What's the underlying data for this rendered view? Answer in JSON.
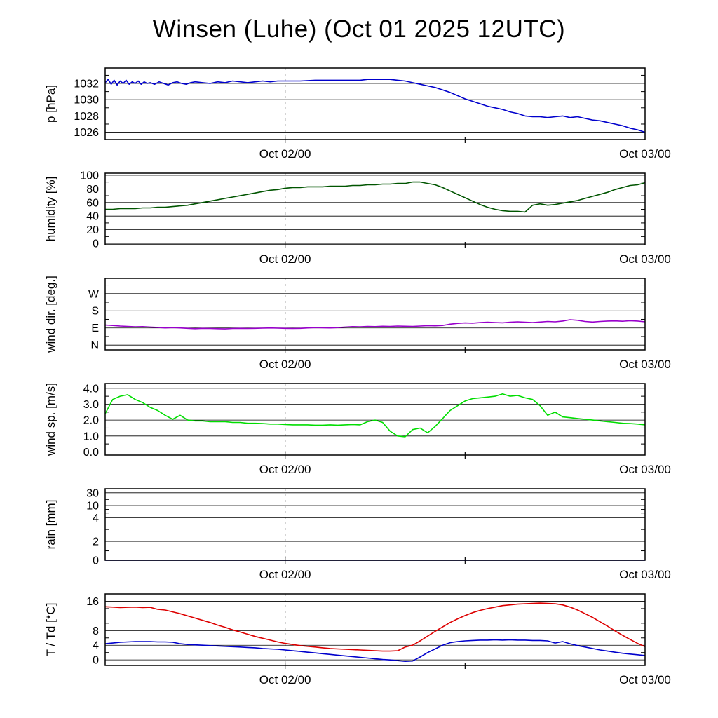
{
  "title": "Winsen (Luhe) (Oct 01 2025 12UTC)",
  "x_axis": {
    "start_hour": 0,
    "end_hour": 36,
    "dashed_line_hour": 12,
    "bottom_tick_hours": [
      12,
      24
    ],
    "labels": [
      {
        "hour": 12,
        "text": "Oct 02/00"
      },
      {
        "hour": 36,
        "text": "Oct 03/00"
      }
    ]
  },
  "chart_data": [
    {
      "type": "line",
      "ylabel": "p [hPa]",
      "ylim": [
        1025.1,
        1033.9
      ],
      "yticks": [
        {
          "v": 1026,
          "label": "1026"
        },
        {
          "v": 1028,
          "label": "1028"
        },
        {
          "v": 1030,
          "label": "1030"
        },
        {
          "v": 1032,
          "label": "1032"
        }
      ],
      "yminor": [
        1027,
        1029,
        1031,
        1033
      ],
      "series": [
        {
          "name": "pressure",
          "color": "#0000cc",
          "x": [
            0,
            0.2,
            0.4,
            0.6,
            0.8,
            1,
            1.2,
            1.4,
            1.6,
            1.8,
            2,
            2.2,
            2.4,
            2.6,
            2.8,
            3,
            3.3,
            3.6,
            3.9,
            4.2,
            4.5,
            4.8,
            5.1,
            5.4,
            5.7,
            6,
            6.5,
            7,
            7.5,
            8,
            8.5,
            9,
            9.5,
            10,
            10.5,
            11,
            11.5,
            12,
            13,
            14,
            15,
            16,
            17,
            17.5,
            18,
            18.5,
            19,
            19.5,
            20,
            20.5,
            21,
            21.5,
            22,
            22.5,
            23,
            23.5,
            24,
            24.5,
            25,
            25.5,
            26,
            26.5,
            27,
            27.5,
            28,
            28.5,
            29,
            29.5,
            30,
            30.5,
            31,
            31.5,
            32,
            32.5,
            33,
            33.5,
            34,
            34.5,
            35,
            35.5,
            36
          ],
          "y": [
            1032.1,
            1032.5,
            1031.9,
            1032.4,
            1031.8,
            1032.3,
            1032.0,
            1032.4,
            1031.9,
            1032.2,
            1032.0,
            1032.3,
            1031.9,
            1032.2,
            1032.0,
            1032.1,
            1031.9,
            1032.2,
            1032.0,
            1031.8,
            1032.1,
            1032.2,
            1032.0,
            1031.9,
            1032.1,
            1032.2,
            1032.1,
            1032.0,
            1032.2,
            1032.1,
            1032.3,
            1032.2,
            1032.1,
            1032.2,
            1032.3,
            1032.2,
            1032.3,
            1032.3,
            1032.3,
            1032.4,
            1032.4,
            1032.4,
            1032.4,
            1032.5,
            1032.5,
            1032.5,
            1032.5,
            1032.4,
            1032.3,
            1032.1,
            1031.9,
            1031.7,
            1031.5,
            1031.2,
            1030.9,
            1030.5,
            1030.1,
            1029.8,
            1029.5,
            1029.2,
            1029.0,
            1028.8,
            1028.5,
            1028.3,
            1028.0,
            1027.9,
            1027.9,
            1027.8,
            1027.9,
            1028.0,
            1027.8,
            1027.9,
            1027.7,
            1027.5,
            1027.4,
            1027.2,
            1027.0,
            1026.8,
            1026.5,
            1026.3,
            1026.0
          ]
        }
      ]
    },
    {
      "type": "line",
      "ylabel": "humidity [%]",
      "ylim": [
        -2,
        103
      ],
      "yticks": [
        {
          "v": 0,
          "label": "0"
        },
        {
          "v": 20,
          "label": "20"
        },
        {
          "v": 40,
          "label": "40"
        },
        {
          "v": 60,
          "label": "60"
        },
        {
          "v": 80,
          "label": "80"
        },
        {
          "v": 100,
          "label": "100"
        }
      ],
      "yminor": [
        10,
        30,
        50,
        70,
        90
      ],
      "series": [
        {
          "name": "humidity",
          "color": "#005500",
          "x_start": 0,
          "x_step": 0.5,
          "y": [
            50,
            50,
            51,
            51,
            51,
            52,
            52,
            53,
            53,
            54,
            55,
            56,
            58,
            60,
            62,
            64,
            66,
            68,
            70,
            72,
            74,
            76,
            78,
            79,
            81,
            82,
            82,
            83,
            83,
            83,
            84,
            84,
            84,
            85,
            85,
            86,
            86,
            87,
            87,
            88,
            88,
            90,
            90,
            88,
            86,
            82,
            77,
            72,
            67,
            62,
            57,
            53,
            50,
            48,
            47,
            47,
            46,
            56,
            58,
            56,
            57,
            59,
            61,
            63,
            66,
            69,
            72,
            75,
            79,
            82,
            85,
            86,
            89
          ]
        }
      ]
    },
    {
      "type": "line",
      "ylabel": "wind dir. [deg.]",
      "ylim": [
        -25,
        350
      ],
      "yticks": [
        {
          "v": 0,
          "label": "N"
        },
        {
          "v": 90,
          "label": "E"
        },
        {
          "v": 180,
          "label": "S"
        },
        {
          "v": 270,
          "label": "W"
        }
      ],
      "yminor": [
        45,
        135,
        225,
        315
      ],
      "series": [
        {
          "name": "wind-direction",
          "color": "#9900cc",
          "x_start": 0,
          "x_step": 0.5,
          "y": [
            105,
            103,
            100,
            98,
            96,
            97,
            95,
            93,
            90,
            92,
            90,
            88,
            86,
            88,
            87,
            86,
            85,
            87,
            88,
            87,
            88,
            89,
            90,
            89,
            88,
            87,
            88,
            90,
            92,
            91,
            90,
            92,
            95,
            97,
            96,
            98,
            97,
            99,
            98,
            100,
            99,
            98,
            100,
            102,
            101,
            103,
            110,
            114,
            116,
            115,
            118,
            120,
            118,
            117,
            120,
            122,
            120,
            118,
            121,
            124,
            122,
            126,
            133,
            130,
            124,
            121,
            124,
            126,
            127,
            125,
            128,
            126,
            122
          ]
        }
      ]
    },
    {
      "type": "line",
      "ylabel": "wind sp. [m/s]",
      "ylim": [
        -0.2,
        4.3
      ],
      "yticks": [
        {
          "v": 0,
          "label": "0.0"
        },
        {
          "v": 1,
          "label": "1.0"
        },
        {
          "v": 2,
          "label": "2.0"
        },
        {
          "v": 3,
          "label": "3.0"
        },
        {
          "v": 4,
          "label": "4.0"
        }
      ],
      "yminor": [
        0.5,
        1.5,
        2.5,
        3.5
      ],
      "series": [
        {
          "name": "wind-speed",
          "color": "#00dd00",
          "x_start": 0,
          "x_step": 0.5,
          "y": [
            2.4,
            3.3,
            3.5,
            3.6,
            3.3,
            3.1,
            2.8,
            2.6,
            2.3,
            2.05,
            2.3,
            2.0,
            1.95,
            1.95,
            1.9,
            1.9,
            1.9,
            1.85,
            1.85,
            1.8,
            1.8,
            1.78,
            1.75,
            1.75,
            1.72,
            1.7,
            1.7,
            1.7,
            1.68,
            1.68,
            1.7,
            1.68,
            1.7,
            1.72,
            1.7,
            1.9,
            2.0,
            1.85,
            1.3,
            1.0,
            0.95,
            1.4,
            1.5,
            1.2,
            1.6,
            2.1,
            2.6,
            2.9,
            3.2,
            3.35,
            3.4,
            3.45,
            3.5,
            3.65,
            3.5,
            3.55,
            3.4,
            3.3,
            2.9,
            2.3,
            2.5,
            2.2,
            2.15,
            2.1,
            2.05,
            2.0,
            1.95,
            1.9,
            1.85,
            1.8,
            1.78,
            1.75,
            1.7
          ]
        }
      ]
    },
    {
      "type": "line",
      "ylabel": "rain [mm]",
      "ylim": [
        0,
        1
      ],
      "axis_note": "nonlinear rain scale, tick values in mm",
      "yticks": [
        {
          "v": 0,
          "label": "0"
        },
        {
          "v": 0.264,
          "label": "2"
        },
        {
          "v": 0.594,
          "label": "4"
        },
        {
          "v": 0.764,
          "label": "10"
        },
        {
          "v": 0.943,
          "label": "30"
        }
      ],
      "yminor": [
        0.132,
        0.43,
        0.66,
        0.71,
        0.85
      ],
      "series": [
        {
          "name": "rain",
          "color": "#0000cc",
          "x": [
            0,
            36
          ],
          "y": [
            0,
            0
          ]
        }
      ]
    },
    {
      "type": "line",
      "ylabel": "T / Td [*C]",
      "ylim": [
        -1.5,
        18
      ],
      "yticks": [
        {
          "v": 0,
          "label": "0"
        },
        {
          "v": 4,
          "label": "4"
        },
        {
          "v": 8,
          "label": "8"
        },
        {
          "v": 12,
          "label": ""
        },
        {
          "v": 16,
          "label": "16"
        }
      ],
      "yminor": [
        2,
        6,
        10,
        14
      ],
      "series": [
        {
          "name": "temperature",
          "color": "#dd0000",
          "x_start": 0,
          "x_step": 0.5,
          "y": [
            14.5,
            14.4,
            14.3,
            14.35,
            14.4,
            14.3,
            14.35,
            13.8,
            13.6,
            13.1,
            12.6,
            12.0,
            11.4,
            10.8,
            10.2,
            9.5,
            8.9,
            8.2,
            7.6,
            7.0,
            6.4,
            5.9,
            5.4,
            4.9,
            4.5,
            4.2,
            3.9,
            3.7,
            3.5,
            3.3,
            3.1,
            3.0,
            2.9,
            2.8,
            2.7,
            2.6,
            2.5,
            2.4,
            2.4,
            2.5,
            3.5,
            4.0,
            5.2,
            6.5,
            7.8,
            9.0,
            10.2,
            11.2,
            12.1,
            12.9,
            13.5,
            14.0,
            14.4,
            14.8,
            15.0,
            15.2,
            15.3,
            15.4,
            15.5,
            15.4,
            15.3,
            15.0,
            14.4,
            13.6,
            12.6,
            11.6,
            10.4,
            9.2,
            7.9,
            6.7,
            5.6,
            4.5,
            3.6
          ]
        },
        {
          "name": "dewpoint",
          "color": "#0000cc",
          "x_start": 0,
          "x_step": 0.5,
          "y": [
            4.4,
            4.6,
            4.8,
            4.9,
            5.0,
            5.0,
            5.0,
            4.9,
            4.9,
            4.8,
            4.4,
            4.2,
            4.1,
            4.0,
            3.9,
            3.8,
            3.7,
            3.6,
            3.5,
            3.4,
            3.3,
            3.1,
            3.0,
            2.9,
            2.7,
            2.5,
            2.3,
            2.1,
            1.9,
            1.7,
            1.5,
            1.3,
            1.1,
            0.9,
            0.7,
            0.5,
            0.3,
            0.1,
            0.0,
            -0.2,
            -0.4,
            -0.3,
            0.8,
            2.0,
            3.0,
            4.0,
            4.7,
            5.0,
            5.2,
            5.3,
            5.4,
            5.4,
            5.5,
            5.4,
            5.5,
            5.4,
            5.4,
            5.3,
            5.3,
            5.2,
            4.6,
            5.0,
            4.4,
            3.9,
            3.5,
            3.1,
            2.7,
            2.4,
            2.1,
            1.8,
            1.6,
            1.4,
            1.2
          ]
        }
      ]
    }
  ]
}
